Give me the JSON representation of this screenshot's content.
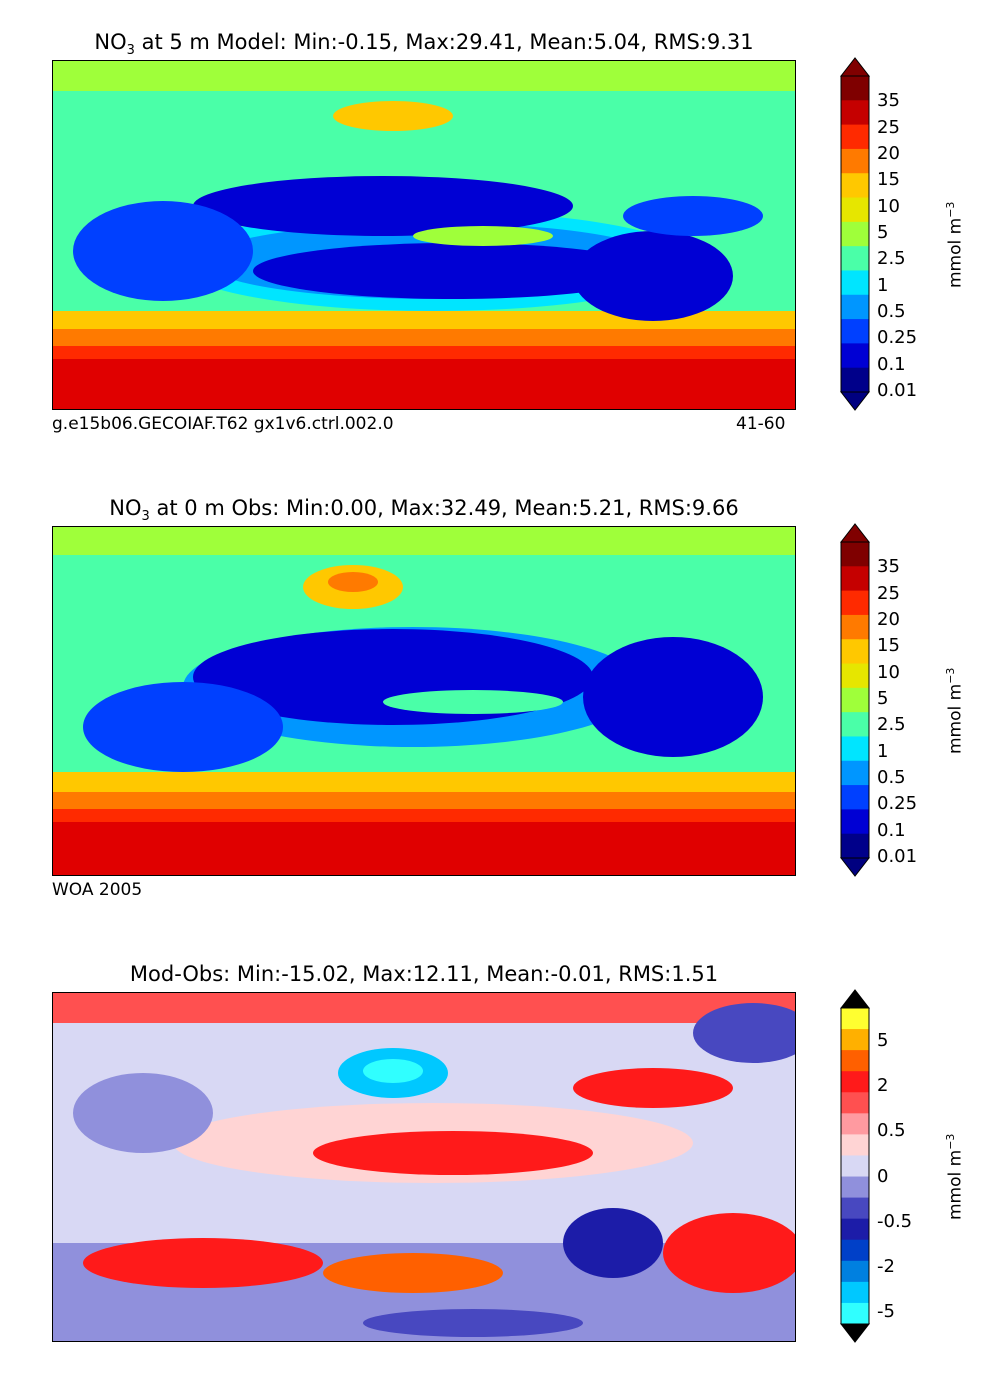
{
  "panels": [
    {
      "id": "model",
      "title_prefix": "NO",
      "title_sub": "3",
      "title_rest": " at 5 m Model: Min:-0.15, Max:29.41, Mean:5.04, RMS:9.31",
      "footer_left": "g.e15b06.GECOIAF.T62 gx1v6.ctrl.002.0",
      "footer_right": "41-60",
      "colorbar": {
        "ticks": [
          "35",
          "25",
          "20",
          "15",
          "10",
          "5",
          "2.5",
          "1",
          "0.5",
          "0.25",
          "0.1",
          "0.01"
        ],
        "unit": "mmol m",
        "unit_exp": "−3",
        "colors": [
          "#7f0000",
          "#c50000",
          "#ff2a00",
          "#ff7a00",
          "#ffc800",
          "#e6e600",
          "#9fff3a",
          "#4affa8",
          "#00e5ff",
          "#0096ff",
          "#0040ff",
          "#0000d4",
          "#00008a"
        ],
        "extend_top": "#800000",
        "extend_bottom": "#000080"
      }
    },
    {
      "id": "obs",
      "title_prefix": "NO",
      "title_sub": "3",
      "title_rest": " at 0 m Obs: Min:0.00, Max:32.49, Mean:5.21, RMS:9.66",
      "footer_left": "WOA 2005",
      "footer_right": "",
      "colorbar": {
        "ticks": [
          "35",
          "25",
          "20",
          "15",
          "10",
          "5",
          "2.5",
          "1",
          "0.5",
          "0.25",
          "0.1",
          "0.01"
        ],
        "unit": "mmol m",
        "unit_exp": "−3",
        "colors": [
          "#7f0000",
          "#c50000",
          "#ff2a00",
          "#ff7a00",
          "#ffc800",
          "#e6e600",
          "#9fff3a",
          "#4affa8",
          "#00e5ff",
          "#0096ff",
          "#0040ff",
          "#0000d4",
          "#00008a"
        ],
        "extend_top": "#800000",
        "extend_bottom": "#000080"
      }
    },
    {
      "id": "diff",
      "title_prefix": "",
      "title_sub": "",
      "title_rest": "Mod-Obs: Min:-15.02, Max:12.11, Mean:-0.01, RMS:1.51",
      "footer_left": "",
      "footer_right": "",
      "colorbar": {
        "ticks": [
          "5",
          "2",
          "0.5",
          "0",
          "-0.5",
          "-2",
          "-5"
        ],
        "unit": "mmol m",
        "unit_exp": "−3",
        "colors": [
          "#ffff30",
          "#ffb000",
          "#ff6000",
          "#ff1a1a",
          "#ff5050",
          "#ff9aa0",
          "#ffd4d4",
          "#d8d8f4",
          "#9090dc",
          "#4848c0",
          "#1c1ca8",
          "#0040c8",
          "#0080e0",
          "#00c8ff",
          "#30ffff"
        ],
        "extend_top": "#000000",
        "extend_bottom": "#000000"
      }
    }
  ]
}
